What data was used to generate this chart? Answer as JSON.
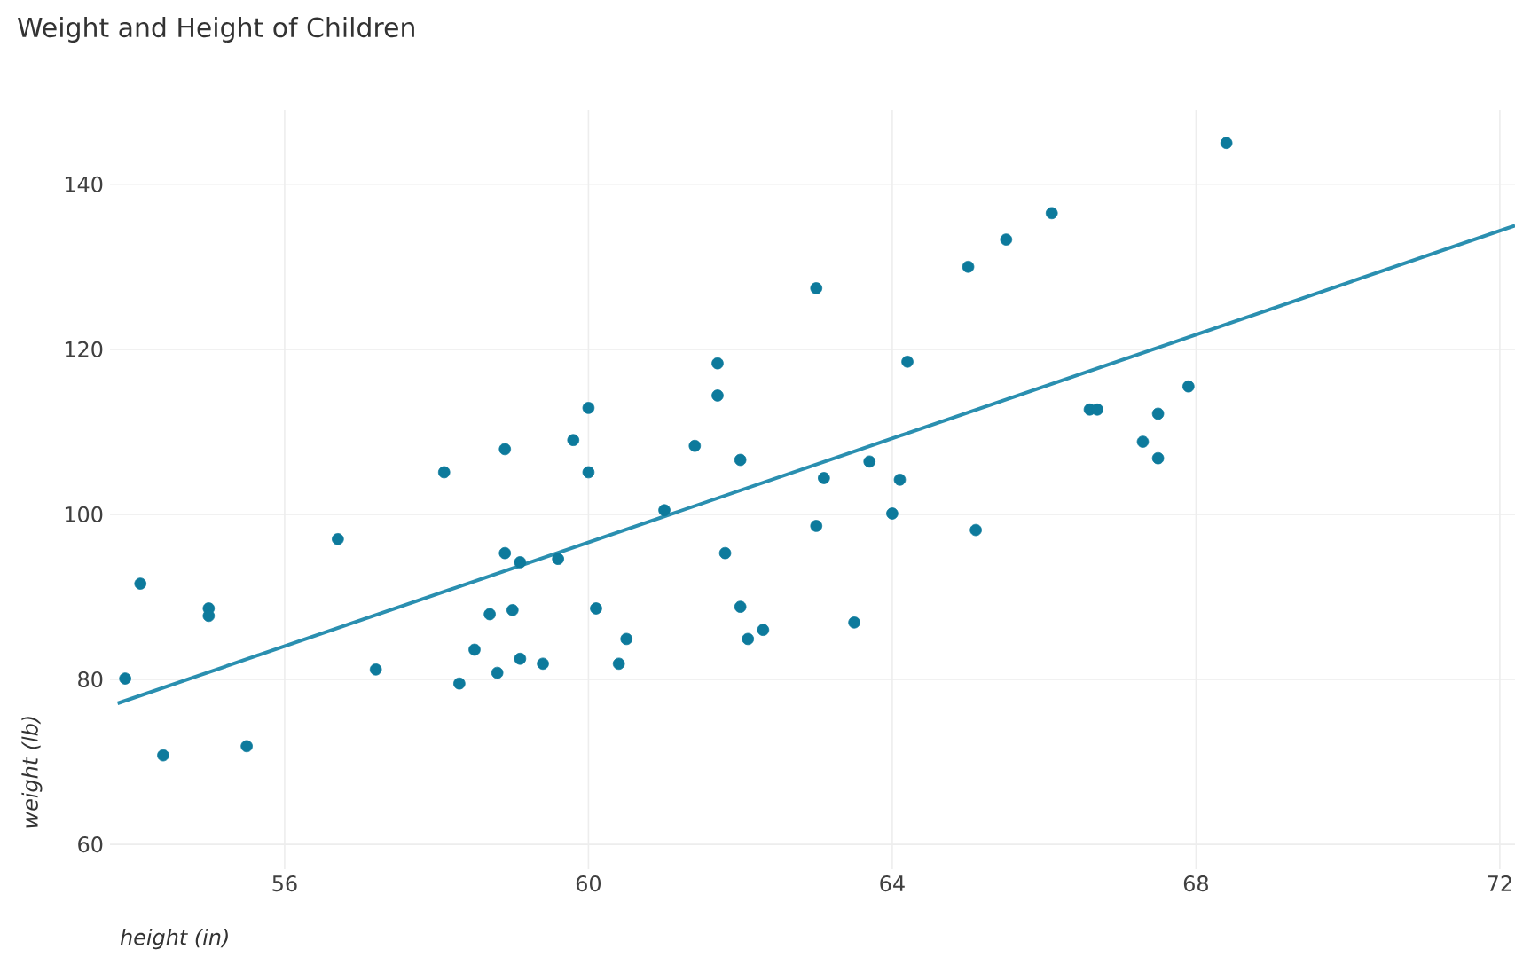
{
  "chart_data": {
    "type": "scatter",
    "title": "Weight and Height of Children",
    "xlabel": "height (in)",
    "ylabel": "weight (lb)",
    "xlim": [
      53.7,
      72.2
    ],
    "ylim": [
      57,
      149
    ],
    "xticks": [
      56,
      60,
      64,
      68,
      72
    ],
    "yticks": [
      60,
      80,
      100,
      120,
      140
    ],
    "grid": true,
    "marker": "circle",
    "series": [
      {
        "color": "#0d7a9c",
        "x": [
          53.9,
          54.1,
          54.4,
          55.0,
          55.0,
          55.5,
          56.7,
          57.2,
          58.1,
          58.3,
          58.5,
          58.7,
          58.9,
          58.9,
          59.1,
          58.8,
          59.0,
          59.1,
          59.4,
          59.6,
          59.8,
          60.0,
          60.0,
          60.1,
          60.5,
          60.4,
          61.0,
          61.4,
          61.7,
          61.7,
          62.0,
          61.8,
          62.0,
          62.1,
          62.3,
          63.0,
          63.0,
          63.1,
          63.5,
          63.7,
          64.0,
          64.1,
          64.2,
          65.0,
          65.1,
          65.5,
          66.1,
          66.6,
          66.7,
          67.3,
          67.5,
          67.5,
          67.9,
          68.4
        ],
        "values": [
          80.1,
          91.6,
          70.8,
          88.6,
          87.7,
          71.9,
          97.0,
          81.2,
          105.1,
          79.5,
          83.6,
          87.9,
          107.9,
          95.3,
          94.2,
          80.8,
          88.4,
          82.5,
          81.9,
          94.6,
          109.0,
          112.9,
          105.1,
          88.6,
          84.9,
          81.9,
          100.5,
          108.3,
          118.3,
          114.4,
          106.6,
          95.3,
          88.8,
          84.9,
          86.0,
          127.4,
          98.6,
          104.4,
          86.9,
          106.4,
          100.1,
          104.2,
          118.5,
          130.0,
          98.1,
          133.3,
          136.5,
          112.7,
          112.7,
          108.8,
          112.2,
          106.8,
          115.5,
          145.0
        ]
      },
      {
        "type": "line",
        "color": "#2a8fb0",
        "marker": "none",
        "x": [
          53.8,
          72.2
        ],
        "values": [
          77.1,
          135.0
        ]
      }
    ]
  }
}
